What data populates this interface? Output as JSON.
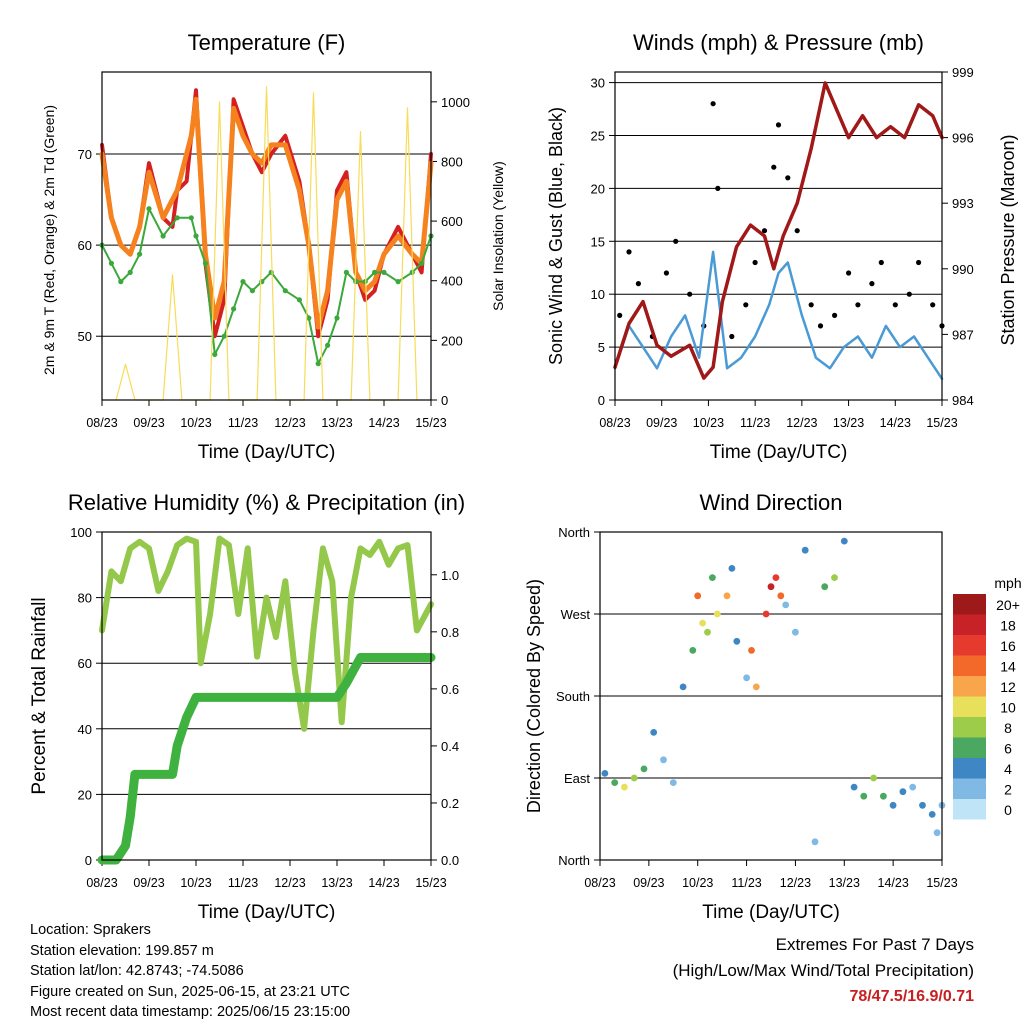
{
  "info": {
    "location": "Location: Sprakers",
    "elevation": "Station elevation: 199.857 m",
    "latlon": "Station lat/lon: 42.8743; -74.5086",
    "created": "Figure created on Sun, 2025-06-15, at 23:21 UTC",
    "recent": "Most recent data timestamp: 2025/06/15 23:15:00"
  },
  "extremes": {
    "title": "Extremes For Past 7 Days",
    "subtitle": "(High/Low/Max Wind/Total Precipitation)",
    "values": "78/47.5/16.9/0.71"
  },
  "colors": {
    "temp_red": "#d42020",
    "temp_orange": "#f5821f",
    "dewpoint_green": "#3aa83a",
    "solar_yellow": "#f7dc5a",
    "gust_black": "#000000",
    "wind_blue": "#4a9ad6",
    "pressure_maroon": "#a01818",
    "rh_lightgreen": "#93c84a",
    "precip_green": "#3fb13f"
  },
  "chart_data": [
    {
      "type": "line",
      "title": "Temperature (F)",
      "xlabel": "Time (Day/UTC)",
      "ylabel": "2m & 9m T (Red, Orange) & 2m Td (Green)",
      "ylabel_right": "Solar Insolation (Yellow)",
      "x_ticks": [
        "08/23",
        "09/23",
        "10/23",
        "11/23",
        "12/23",
        "13/23",
        "14/23",
        "15/23"
      ],
      "ylim": [
        43,
        79
      ],
      "yticks": [
        50,
        60,
        70
      ],
      "ylim_right": [
        0,
        1100
      ],
      "yticks_right": [
        0,
        200,
        400,
        600,
        800,
        1000
      ],
      "grid": true,
      "series": [
        {
          "name": "2m T",
          "x": [
            0,
            0.1,
            0.2,
            0.4,
            0.6,
            0.8,
            1.0,
            1.3,
            1.5,
            1.6,
            1.8,
            1.9,
            2.0,
            2.2,
            2.4,
            2.6,
            2.8,
            3.0,
            3.2,
            3.4,
            3.6,
            3.9,
            4.2,
            4.4,
            4.6,
            4.8,
            5.0,
            5.2,
            5.4,
            5.6,
            5.8,
            6.0,
            6.3,
            6.6,
            6.8,
            7.0
          ],
          "values": [
            71,
            67,
            63,
            60,
            59,
            62,
            69,
            63,
            62,
            66,
            67,
            72,
            77,
            58,
            50,
            54,
            76,
            73,
            70,
            68,
            70,
            72,
            67,
            60,
            50,
            54,
            66,
            68,
            57,
            54,
            55,
            59,
            62,
            59,
            57,
            70
          ]
        },
        {
          "name": "9m T",
          "x": [
            0,
            0.2,
            0.4,
            0.6,
            0.8,
            1.0,
            1.3,
            1.6,
            1.9,
            2.0,
            2.2,
            2.4,
            2.6,
            2.8,
            3.0,
            3.2,
            3.4,
            3.6,
            3.9,
            4.2,
            4.4,
            4.6,
            4.8,
            5.0,
            5.2,
            5.4,
            5.6,
            5.8,
            6.0,
            6.3,
            6.6,
            6.8,
            7.0
          ],
          "values": [
            70,
            63,
            60,
            59,
            62,
            68,
            63,
            66,
            72,
            76,
            59,
            52,
            56,
            75,
            72,
            70,
            69,
            71,
            71,
            66,
            60,
            51,
            55,
            65,
            67,
            57,
            55,
            56,
            59,
            61,
            59,
            58,
            69
          ]
        },
        {
          "name": "2m Td",
          "x": [
            0,
            0.2,
            0.4,
            0.6,
            0.8,
            1.0,
            1.3,
            1.6,
            1.9,
            2.0,
            2.2,
            2.4,
            2.6,
            2.8,
            3.0,
            3.2,
            3.4,
            3.6,
            3.9,
            4.2,
            4.4,
            4.6,
            4.8,
            5.0,
            5.2,
            5.4,
            5.6,
            5.8,
            6.0,
            6.3,
            6.6,
            6.8,
            7.0
          ],
          "values": [
            60,
            58,
            56,
            57,
            59,
            64,
            61,
            63,
            63,
            61,
            58,
            48,
            50,
            53,
            56,
            55,
            56,
            57,
            55,
            54,
            52,
            47,
            49,
            52,
            57,
            56,
            56,
            57,
            57,
            56,
            57,
            58,
            61
          ]
        },
        {
          "name": "Solar",
          "x": [
            0.3,
            0.5,
            0.7,
            1.3,
            1.5,
            1.7,
            2.3,
            2.5,
            2.7,
            3.3,
            3.5,
            3.7,
            4.3,
            4.5,
            4.7,
            5.3,
            5.5,
            5.7,
            6.3,
            6.5,
            6.7
          ],
          "values": [
            0,
            120,
            0,
            0,
            420,
            0,
            0,
            1000,
            0,
            0,
            1050,
            0,
            0,
            1030,
            0,
            0,
            900,
            0,
            0,
            980,
            0
          ]
        }
      ]
    },
    {
      "type": "scatter",
      "title": "Winds (mph) & Pressure (mb)",
      "xlabel": "Time (Day/UTC)",
      "ylabel": "Sonic Wind & Gust (Blue, Black)",
      "ylabel_right": "Station Pressure (Maroon)",
      "x_ticks": [
        "08/23",
        "09/23",
        "10/23",
        "11/23",
        "12/23",
        "13/23",
        "14/23",
        "15/23"
      ],
      "ylim": [
        0,
        31
      ],
      "yticks": [
        0,
        5,
        10,
        15,
        20,
        25,
        30
      ],
      "ylim_right": [
        984,
        999
      ],
      "yticks_right": [
        984,
        987,
        990,
        993,
        996,
        999
      ],
      "grid": true,
      "series": [
        {
          "name": "Gust",
          "x": [
            0.1,
            0.3,
            0.5,
            0.8,
            1.1,
            1.3,
            1.6,
            1.9,
            2.1,
            2.2,
            2.5,
            2.8,
            3.0,
            3.2,
            3.4,
            3.5,
            3.7,
            3.9,
            4.2,
            4.4,
            4.7,
            5.0,
            5.2,
            5.5,
            5.7,
            6.0,
            6.3,
            6.5,
            6.8,
            7.0
          ],
          "values": [
            8,
            14,
            11,
            6,
            12,
            15,
            10,
            7,
            28,
            20,
            6,
            9,
            13,
            16,
            22,
            26,
            21,
            16,
            9,
            7,
            8,
            12,
            9,
            11,
            13,
            9,
            10,
            13,
            9,
            7
          ]
        },
        {
          "name": "Wind",
          "x": [
            0,
            0.3,
            0.6,
            0.9,
            1.2,
            1.5,
            1.8,
            2.1,
            2.4,
            2.7,
            3.0,
            3.3,
            3.5,
            3.7,
            4.0,
            4.3,
            4.6,
            4.9,
            5.2,
            5.5,
            5.8,
            6.1,
            6.4,
            6.7,
            7.0
          ],
          "values": [
            3,
            7,
            5,
            3,
            6,
            8,
            4,
            14,
            3,
            4,
            6,
            9,
            12,
            13,
            8,
            4,
            3,
            5,
            6,
            4,
            7,
            5,
            6,
            4,
            2
          ]
        },
        {
          "name": "Pressure",
          "x": [
            0,
            0.3,
            0.6,
            0.9,
            1.2,
            1.6,
            1.9,
            2.1,
            2.3,
            2.6,
            2.9,
            3.2,
            3.4,
            3.6,
            3.9,
            4.2,
            4.5,
            4.8,
            5.0,
            5.3,
            5.6,
            5.9,
            6.2,
            6.5,
            6.8,
            7.0
          ],
          "values": [
            985.5,
            987.5,
            988.5,
            986.5,
            986.0,
            986.5,
            985.0,
            985.5,
            988.5,
            991.0,
            992.0,
            991.5,
            990.0,
            991.5,
            993.0,
            995.5,
            998.5,
            997.0,
            996.0,
            997.0,
            996.0,
            996.5,
            996.0,
            997.5,
            997.0,
            996.0
          ]
        }
      ]
    },
    {
      "type": "line",
      "title": "Relative Humidity (%) & Precipitation (in)",
      "xlabel": "Time (Day/UTC)",
      "ylabel": "Percent & Total Rainfall",
      "x_ticks": [
        "08/23",
        "09/23",
        "10/23",
        "11/23",
        "12/23",
        "13/23",
        "14/23",
        "15/23"
      ],
      "ylim": [
        0,
        100
      ],
      "yticks": [
        0,
        20,
        40,
        60,
        80,
        100
      ],
      "ylim_right": [
        0,
        1.15
      ],
      "yticks_right": [
        0.0,
        0.2,
        0.4,
        0.6,
        0.8,
        1.0
      ],
      "grid": true,
      "series": [
        {
          "name": "RH",
          "x": [
            0,
            0.2,
            0.4,
            0.6,
            0.8,
            1.0,
            1.2,
            1.4,
            1.6,
            1.8,
            2.0,
            2.1,
            2.3,
            2.5,
            2.7,
            2.9,
            3.1,
            3.3,
            3.5,
            3.7,
            3.9,
            4.1,
            4.3,
            4.5,
            4.7,
            4.9,
            5.1,
            5.3,
            5.5,
            5.7,
            5.9,
            6.1,
            6.3,
            6.5,
            6.7,
            7.0
          ],
          "values": [
            70,
            88,
            85,
            95,
            97,
            95,
            82,
            88,
            96,
            98,
            97,
            60,
            75,
            98,
            96,
            75,
            95,
            62,
            80,
            68,
            85,
            58,
            40,
            70,
            95,
            85,
            42,
            80,
            95,
            93,
            97,
            90,
            95,
            96,
            70,
            78
          ]
        },
        {
          "name": "Precip",
          "x": [
            0,
            0.3,
            0.5,
            0.6,
            0.7,
            0.8,
            1.0,
            1.5,
            1.6,
            1.8,
            2.0,
            2.5,
            3.0,
            3.5,
            4.0,
            4.5,
            5.0,
            5.2,
            5.3,
            5.5,
            6.0,
            6.5,
            7.0
          ],
          "values": [
            0,
            0,
            0.05,
            0.15,
            0.3,
            0.3,
            0.3,
            0.3,
            0.4,
            0.5,
            0.57,
            0.57,
            0.57,
            0.57,
            0.57,
            0.57,
            0.57,
            0.62,
            0.65,
            0.71,
            0.71,
            0.71,
            0.71
          ]
        }
      ]
    },
    {
      "type": "scatter",
      "title": "Wind Direction",
      "xlabel": "Time (Day/UTC)",
      "ylabel": "Direction (Colored By Speed)",
      "x_ticks": [
        "08/23",
        "09/23",
        "10/23",
        "11/23",
        "12/23",
        "13/23",
        "14/23",
        "15/23"
      ],
      "yticks": [
        "North",
        "West",
        "South",
        "East",
        "North"
      ],
      "ylim": [
        0,
        360
      ],
      "grid": true,
      "legend": {
        "title": "mph",
        "labels": [
          "20+",
          "18",
          "16",
          "14",
          "12",
          "10",
          "8",
          "6",
          "4",
          "2",
          "0"
        ],
        "colors": [
          "#9e1a1a",
          "#c62228",
          "#e63a2e",
          "#f2692a",
          "#f8a54c",
          "#e8e05a",
          "#9ccc4a",
          "#4aa860",
          "#3f86c4",
          "#7fb9e4",
          "#bfe4f7"
        ],
        "placement": "right"
      },
      "series": [
        {
          "name": "Direction",
          "x": [
            0.1,
            0.3,
            0.5,
            0.7,
            0.9,
            1.1,
            1.3,
            1.5,
            1.7,
            1.9,
            2.0,
            2.1,
            2.2,
            2.3,
            2.4,
            2.6,
            2.7,
            2.8,
            3.0,
            3.1,
            3.2,
            3.4,
            3.5,
            3.6,
            3.7,
            3.8,
            4.0,
            4.2,
            4.4,
            4.6,
            4.8,
            5.0,
            5.2,
            5.4,
            5.6,
            5.8,
            6.0,
            6.2,
            6.4,
            6.6,
            6.8,
            6.9,
            7.0
          ],
          "values": [
            95,
            85,
            80,
            90,
            100,
            140,
            110,
            85,
            190,
            230,
            290,
            260,
            250,
            310,
            270,
            290,
            320,
            240,
            200,
            230,
            190,
            270,
            300,
            310,
            290,
            280,
            250,
            340,
            20,
            300,
            310,
            350,
            80,
            70,
            90,
            70,
            60,
            75,
            80,
            60,
            50,
            30,
            60
          ],
          "speeds": [
            4,
            6,
            10,
            8,
            6,
            4,
            2,
            3,
            5,
            7,
            14,
            10,
            8,
            6,
            10,
            12,
            4,
            5,
            3,
            14,
            12,
            16,
            18,
            16,
            14,
            2,
            3,
            4,
            2,
            6,
            8,
            5,
            4,
            6,
            8,
            6,
            4,
            5,
            3,
            4,
            4,
            2,
            3
          ]
        }
      ]
    }
  ]
}
